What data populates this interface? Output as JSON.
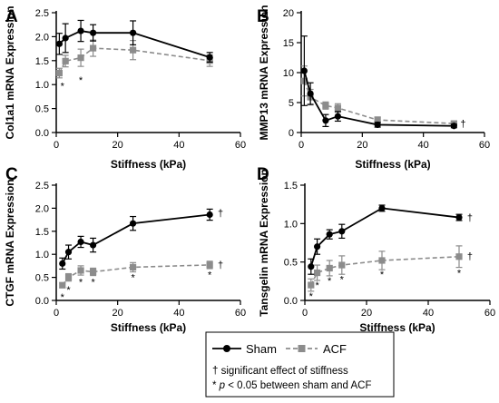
{
  "chart_data": [
    {
      "panel": "A",
      "type": "line",
      "xlabel": "Stiffness (kPa)",
      "ylabel": "Col1a1 mRNA Expression",
      "xlim": [
        0,
        60
      ],
      "ylim": [
        0,
        2.5
      ],
      "xticks": [
        0,
        20,
        40,
        60
      ],
      "yticks": [
        0.0,
        0.5,
        1.0,
        1.5,
        2.0,
        2.5
      ],
      "ytick_decimals": 1,
      "series": [
        {
          "name": "Sham",
          "x": [
            1,
            3,
            8,
            12,
            25,
            50
          ],
          "y": [
            1.85,
            1.97,
            2.12,
            2.08,
            2.08,
            1.57
          ],
          "err": [
            0.22,
            0.3,
            0.22,
            0.17,
            0.25,
            0.1
          ]
        },
        {
          "name": "ACF",
          "x": [
            1,
            3,
            8,
            12,
            25,
            50
          ],
          "y": [
            1.24,
            1.49,
            1.56,
            1.76,
            1.72,
            1.5
          ],
          "err": [
            0.1,
            0.12,
            0.18,
            0.17,
            0.2,
            0.12
          ]
        }
      ],
      "stars": [
        {
          "x": 2,
          "y": 0.98
        },
        {
          "x": 8,
          "y": 1.1
        }
      ],
      "daggers": []
    },
    {
      "panel": "B",
      "type": "line",
      "xlabel": "Stiffness (kPa)",
      "ylabel": "MMP13 mRNA Expression",
      "xlim": [
        0,
        60
      ],
      "ylim": [
        0,
        20
      ],
      "xticks": [
        0,
        20,
        40,
        60
      ],
      "yticks": [
        0,
        5,
        10,
        15,
        20
      ],
      "ytick_decimals": 0,
      "series": [
        {
          "name": "Sham",
          "x": [
            1,
            3,
            8,
            12,
            25,
            50
          ],
          "y": [
            10.3,
            6.5,
            2.0,
            2.7,
            1.3,
            1.1
          ],
          "err": [
            5.8,
            1.8,
            1.0,
            0.8,
            0.4,
            0.3
          ]
        },
        {
          "name": "ACF",
          "x": [
            1,
            3,
            8,
            12,
            25,
            50
          ],
          "y": [
            8.6,
            5.9,
            4.5,
            4.1,
            2.1,
            1.5
          ],
          "err": [
            2.5,
            1.3,
            0.6,
            0.7,
            0.5,
            0.3
          ]
        }
      ],
      "stars": [],
      "daggers": [
        {
          "x": 53,
          "y": 1.5
        }
      ]
    },
    {
      "panel": "C",
      "type": "line",
      "xlabel": "Stiffness (kPa)",
      "ylabel": "CTGF mRNA Expression",
      "xlim": [
        0,
        60
      ],
      "ylim": [
        0,
        2.5
      ],
      "xticks": [
        0,
        20,
        40,
        60
      ],
      "yticks": [
        0.0,
        0.5,
        1.0,
        1.5,
        2.0,
        2.5
      ],
      "ytick_decimals": 1,
      "series": [
        {
          "name": "Sham",
          "x": [
            2,
            4,
            8,
            12,
            25,
            50
          ],
          "y": [
            0.8,
            1.05,
            1.27,
            1.2,
            1.67,
            1.86
          ],
          "err": [
            0.12,
            0.15,
            0.12,
            0.15,
            0.15,
            0.12
          ]
        },
        {
          "name": "ACF",
          "x": [
            2,
            4,
            8,
            12,
            25,
            50
          ],
          "y": [
            0.33,
            0.5,
            0.65,
            0.62,
            0.72,
            0.77
          ],
          "err": [
            0.05,
            0.08,
            0.1,
            0.08,
            0.1,
            0.08
          ]
        }
      ],
      "stars": [
        {
          "x": 2,
          "y": 0.08
        },
        {
          "x": 4,
          "y": 0.24
        },
        {
          "x": 8,
          "y": 0.4
        },
        {
          "x": 12,
          "y": 0.4
        },
        {
          "x": 25,
          "y": 0.5
        },
        {
          "x": 50,
          "y": 0.56
        }
      ],
      "daggers": [
        {
          "x": 53.5,
          "y": 1.9
        },
        {
          "x": 53.5,
          "y": 0.78
        }
      ]
    },
    {
      "panel": "D",
      "type": "line",
      "xlabel": "Stiffness (kPa)",
      "ylabel": "Tansgelin mRNA Expression",
      "xlim": [
        0,
        60
      ],
      "ylim": [
        0,
        1.5
      ],
      "xticks": [
        0,
        20,
        40,
        60
      ],
      "yticks": [
        0.0,
        0.5,
        1.0,
        1.5
      ],
      "ytick_decimals": 1,
      "series": [
        {
          "name": "Sham",
          "x": [
            2,
            4,
            8,
            12,
            25,
            50
          ],
          "y": [
            0.44,
            0.7,
            0.86,
            0.9,
            1.2,
            1.08
          ],
          "err": [
            0.1,
            0.1,
            0.06,
            0.09,
            0.04,
            0.04
          ]
        },
        {
          "name": "ACF",
          "x": [
            2,
            4,
            8,
            12,
            25,
            50
          ],
          "y": [
            0.2,
            0.36,
            0.42,
            0.46,
            0.52,
            0.57
          ],
          "err": [
            0.08,
            0.1,
            0.1,
            0.12,
            0.12,
            0.14
          ]
        }
      ],
      "stars": [
        {
          "x": 2,
          "y": 0.06
        },
        {
          "x": 4,
          "y": 0.2
        },
        {
          "x": 8,
          "y": 0.26
        },
        {
          "x": 12,
          "y": 0.28
        },
        {
          "x": 25,
          "y": 0.34
        },
        {
          "x": 50,
          "y": 0.36
        }
      ],
      "daggers": [
        {
          "x": 53.5,
          "y": 1.08
        },
        {
          "x": 53.5,
          "y": 0.58
        }
      ]
    }
  ],
  "legend": {
    "sham_label": "Sham",
    "acf_label": "ACF",
    "note_dagger": "† significant effect of stiffness",
    "note_star_prefix": "* ",
    "note_star_p": "p",
    "note_star_rest": " < 0.05 between sham and ACF"
  },
  "symbols": {
    "star": "*",
    "dagger": "†"
  },
  "colors": {
    "sham": "#000000",
    "acf": "#8c8c8c"
  }
}
